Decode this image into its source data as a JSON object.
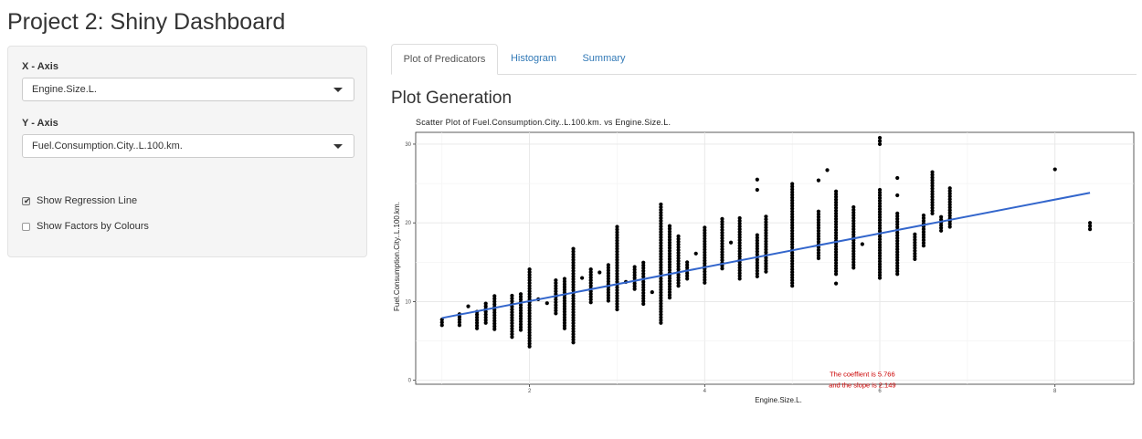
{
  "app": {
    "title": "Project 2: Shiny Dashboard"
  },
  "sidebar": {
    "x_axis": {
      "label": "X - Axis",
      "value": "Engine.Size.L."
    },
    "y_axis": {
      "label": "Y - Axis",
      "value": "Fuel.Consumption.City..L.100.km."
    },
    "checkboxes": [
      {
        "label": "Show Regression Line",
        "checked": true
      },
      {
        "label": "Show Factors by Colours",
        "checked": false
      }
    ]
  },
  "tabs": [
    {
      "label": "Plot of Predicators",
      "active": true
    },
    {
      "label": "Histogram",
      "active": false
    },
    {
      "label": "Summary",
      "active": false
    }
  ],
  "main": {
    "section_title": "Plot Generation"
  },
  "colors": {
    "points": "#000000",
    "regression_line": "#3366cc",
    "annotation": "#cc0000",
    "link": "#337ab7"
  },
  "chart_data": {
    "type": "scatter",
    "title": "Scatter Plot of Fuel.Consumption.City..L.100.km. vs Engine.Size.L.",
    "xlabel": "Engine.Size.L.",
    "ylabel": "Fuel.Consumption.City..L.100.km.",
    "xlim": [
      0.7,
      8.9
    ],
    "ylim": [
      -0.5,
      31.5
    ],
    "x_ticks": [
      2,
      4,
      6,
      8
    ],
    "y_ticks": [
      0,
      10,
      20,
      30
    ],
    "grid": true,
    "columns": [
      {
        "x": 1.0,
        "ymin": 7.0,
        "ymax": 7.8
      },
      {
        "x": 1.2,
        "ymin": 7.0,
        "ymax": 8.7
      },
      {
        "x": 1.4,
        "ymin": 6.6,
        "ymax": 9.0
      },
      {
        "x": 1.5,
        "ymin": 7.3,
        "ymax": 10.0
      },
      {
        "x": 1.6,
        "ymin": 6.5,
        "ymax": 10.9
      },
      {
        "x": 1.8,
        "ymin": 5.5,
        "ymax": 10.9
      },
      {
        "x": 1.9,
        "ymin": 6.4,
        "ymax": 11.0
      },
      {
        "x": 2.0,
        "ymin": 4.3,
        "ymax": 14.3
      },
      {
        "x": 2.3,
        "ymin": 8.5,
        "ymax": 12.8
      },
      {
        "x": 2.4,
        "ymin": 6.6,
        "ymax": 13.2
      },
      {
        "x": 2.5,
        "ymin": 4.8,
        "ymax": 16.8
      },
      {
        "x": 2.7,
        "ymin": 9.9,
        "ymax": 14.2
      },
      {
        "x": 2.9,
        "ymin": 10.1,
        "ymax": 14.7
      },
      {
        "x": 3.0,
        "ymin": 9.0,
        "ymax": 19.5
      },
      {
        "x": 3.2,
        "ymin": 11.6,
        "ymax": 14.5
      },
      {
        "x": 3.3,
        "ymin": 9.7,
        "ymax": 15.0
      },
      {
        "x": 3.5,
        "ymin": 7.3,
        "ymax": 22.4
      },
      {
        "x": 3.6,
        "ymin": 10.5,
        "ymax": 19.8
      },
      {
        "x": 3.7,
        "ymin": 12.0,
        "ymax": 18.6
      },
      {
        "x": 3.8,
        "ymin": 12.9,
        "ymax": 15.1
      },
      {
        "x": 4.0,
        "ymin": 12.4,
        "ymax": 19.5
      },
      {
        "x": 4.2,
        "ymin": 14.2,
        "ymax": 20.6
      },
      {
        "x": 4.4,
        "ymin": 12.9,
        "ymax": 20.6
      },
      {
        "x": 4.6,
        "ymin": 13.2,
        "ymax": 18.6
      },
      {
        "x": 4.7,
        "ymin": 13.8,
        "ymax": 20.8
      },
      {
        "x": 5.0,
        "ymin": 12.0,
        "ymax": 25.0
      },
      {
        "x": 5.3,
        "ymin": 15.5,
        "ymax": 21.5
      },
      {
        "x": 5.5,
        "ymin": 13.5,
        "ymax": 24.0
      },
      {
        "x": 5.7,
        "ymin": 14.3,
        "ymax": 22.0
      },
      {
        "x": 6.0,
        "ymin": 13.0,
        "ymax": 24.2
      },
      {
        "x": 6.2,
        "ymin": 13.5,
        "ymax": 21.5
      },
      {
        "x": 6.4,
        "ymin": 15.4,
        "ymax": 18.8
      },
      {
        "x": 6.5,
        "ymin": 17.1,
        "ymax": 21.0
      },
      {
        "x": 6.6,
        "ymin": 21.2,
        "ymax": 26.5
      },
      {
        "x": 6.7,
        "ymin": 19.0,
        "ymax": 21.0
      },
      {
        "x": 6.8,
        "ymin": 19.5,
        "ymax": 24.4
      }
    ],
    "points": [
      {
        "x": 4.6,
        "y": 25.5
      },
      {
        "x": 4.6,
        "y": 24.2
      },
      {
        "x": 5.4,
        "y": 26.7
      },
      {
        "x": 5.3,
        "y": 25.4
      },
      {
        "x": 5.5,
        "y": 12.3
      },
      {
        "x": 6.0,
        "y": 30.0
      },
      {
        "x": 6.0,
        "y": 30.4
      },
      {
        "x": 6.0,
        "y": 30.8
      },
      {
        "x": 6.2,
        "y": 25.7
      },
      {
        "x": 6.2,
        "y": 23.5
      },
      {
        "x": 8.0,
        "y": 26.8
      },
      {
        "x": 8.4,
        "y": 20.0
      },
      {
        "x": 8.4,
        "y": 19.6
      },
      {
        "x": 8.4,
        "y": 19.2
      },
      {
        "x": 2.6,
        "y": 13.0
      },
      {
        "x": 3.1,
        "y": 12.5
      },
      {
        "x": 1.3,
        "y": 9.4
      },
      {
        "x": 2.1,
        "y": 10.3
      },
      {
        "x": 2.2,
        "y": 9.8
      },
      {
        "x": 3.4,
        "y": 11.2
      },
      {
        "x": 5.8,
        "y": 17.3
      },
      {
        "x": 4.3,
        "y": 17.5
      },
      {
        "x": 3.9,
        "y": 16.1
      },
      {
        "x": 2.8,
        "y": 13.7
      }
    ],
    "regression": {
      "intercept": 5.766,
      "slope": 2.149,
      "x_start": 1.0,
      "x_end": 8.4
    },
    "annotations": [
      "The coeffient is 5.766",
      "and the slope is  2.149"
    ]
  }
}
